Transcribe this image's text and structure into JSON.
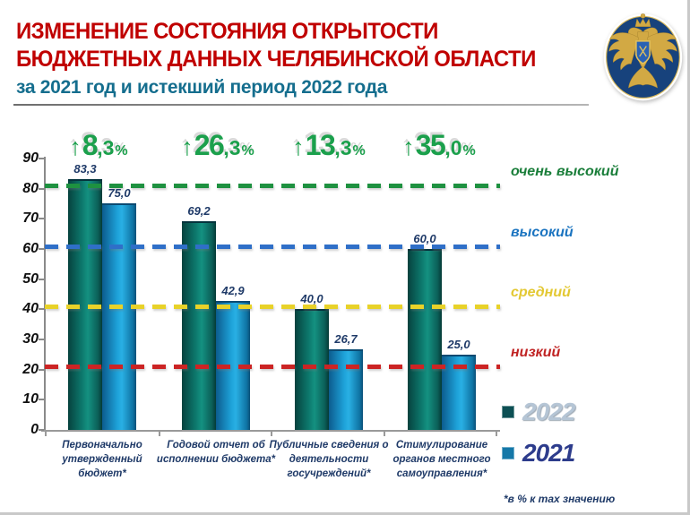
{
  "header": {
    "title_line1": "ИЗМЕНЕНИЕ СОСТОЯНИЯ ОТКРЫТОСТИ",
    "title_line2": "БЮДЖЕТНЫХ ДАННЫХ ЧЕЛЯБИНСКОЙ ОБЛАСТИ",
    "subtitle": "за 2021 год и истекший период 2022 года",
    "title_color": "#c00000",
    "subtitle_color": "#156e8e",
    "logo": "federal-treasury-emblem"
  },
  "chart_data": {
    "type": "bar",
    "title": "Изменение состояния открытости бюджетных данных Челябинской области за 2021 год и истекший период 2022 года",
    "categories": [
      "Первоначально утвержденный бюджет*",
      "Годовой отчет об исполнении бюджета*",
      "Публичные сведения о деятельности госучреждений*",
      "Стимулирование органов местного самоуправления*"
    ],
    "series": [
      {
        "name": "2022",
        "values": [
          83.3,
          69.2,
          40.0,
          60.0
        ],
        "labels": [
          "83,3",
          "69,2",
          "40,0",
          "60,0"
        ],
        "color": "#0f8578",
        "swatch": "#0d5054",
        "legend_text_color": "#b5c5d5"
      },
      {
        "name": "2021",
        "values": [
          75.0,
          42.9,
          26.7,
          25.0
        ],
        "labels": [
          "75,0",
          "42,9",
          "26,7",
          "25,0"
        ],
        "color": "#1ea2d9",
        "swatch": "#1578a8",
        "legend_text_color": "#2d3c8c"
      }
    ],
    "changes": [
      {
        "text": "↑8,3%",
        "arrow": "↑",
        "main": "8",
        "frac": ",3",
        "pct": "%"
      },
      {
        "text": "↑26,3%",
        "arrow": "↑",
        "main": "26",
        "frac": ",3",
        "pct": "%"
      },
      {
        "text": "↑13,3%",
        "arrow": "↑",
        "main": "13",
        "frac": ",3",
        "pct": "%"
      },
      {
        "text": "↑35,0%",
        "arrow": "↑",
        "main": "35",
        "frac": ",0",
        "pct": "%"
      }
    ],
    "thresholds": [
      {
        "label": "очень высокий",
        "value": 81,
        "line_color": "#1e9140",
        "label_color": "#1a7e3a"
      },
      {
        "label": "высокий",
        "value": 61,
        "line_color": "#2f6fc8",
        "label_color": "#1b74c0"
      },
      {
        "label": "средний",
        "value": 41,
        "line_color": "#e8d229",
        "label_color": "#e3c832"
      },
      {
        "label": "низкий",
        "value": 21,
        "line_color": "#cc2424",
        "label_color": "#c02323"
      }
    ],
    "y_ticks": [
      90,
      80,
      70,
      60,
      50,
      40,
      30,
      20,
      10,
      0
    ],
    "ylim": [
      0,
      90
    ],
    "grid": false,
    "legend_position": "right-bottom",
    "footnote": "*в % к max значению"
  }
}
